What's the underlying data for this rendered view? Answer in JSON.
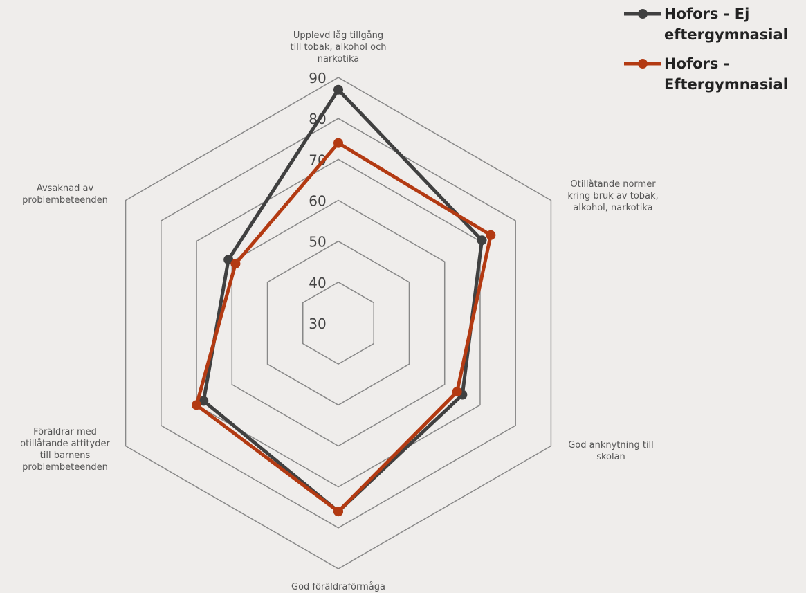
{
  "chart_data": {
    "type": "radar",
    "categories": [
      [
        "Upplevd låg tillgång",
        "till tobak, alkohol och",
        "narkotika"
      ],
      [
        "Otillåtande normer",
        "kring bruk av tobak,",
        "alkohol, narkotika"
      ],
      [
        "God anknytning till",
        "skolan"
      ],
      [
        "God föräldraförmåga"
      ],
      [
        "Föräldrar med",
        "otillåtande attityder",
        "till barnens",
        "problembeteenden"
      ],
      [
        "Avsaknad av",
        "problembeteenden"
      ]
    ],
    "rlim": [
      30,
      90
    ],
    "rticks": [
      30,
      40,
      50,
      60,
      70,
      80,
      90
    ],
    "grid": true,
    "series": [
      {
        "name": [
          "Hofors - Ej",
          "eftergymnasial"
        ],
        "color": "#404040",
        "values": [
          87,
          70.5,
          65,
          76,
          68,
          61
        ]
      },
      {
        "name": [
          "Hofors -",
          "Eftergymnasial"
        ],
        "color": "#b33a12",
        "values": [
          74,
          73,
          63.5,
          76,
          70,
          59
        ]
      }
    ]
  }
}
